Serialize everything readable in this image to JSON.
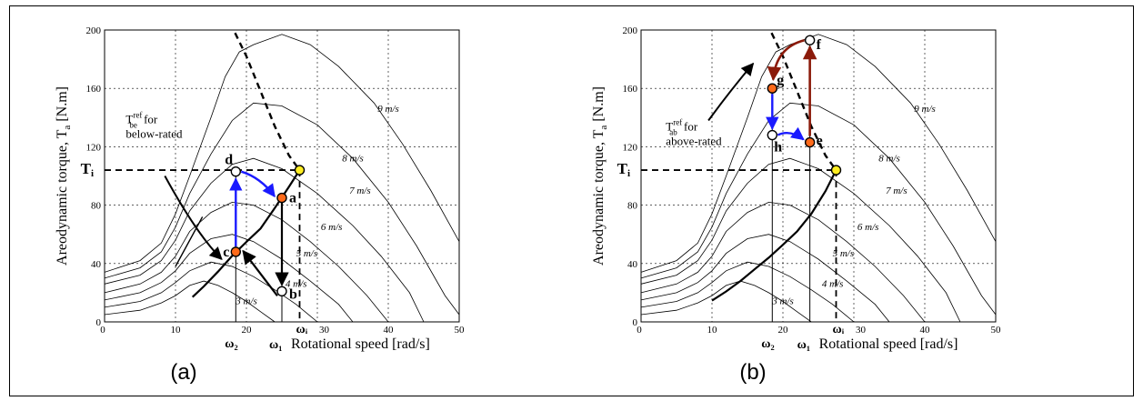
{
  "chart_data": [
    {
      "type": "line",
      "panel_label": "(a)",
      "xlabel": "Rotational speed [rad/s]",
      "ylabel": "Areodynamic torque, T",
      "ylabel_sub": "a",
      "ylabel_unit": "[N.m]",
      "xlim": [
        0,
        50
      ],
      "ylim": [
        0,
        200
      ],
      "xticks": [
        0,
        10,
        20,
        30,
        40,
        50
      ],
      "yticks": [
        0,
        40,
        80,
        120,
        160,
        200
      ],
      "grid": "dotted",
      "t_i_label": "T",
      "t_i_sub": "i",
      "omega_labels": [
        "ω₂",
        "ω₁",
        "ωᵢ"
      ],
      "omega_values": [
        18.5,
        25,
        27.5
      ],
      "T_i": 104,
      "ref_label": {
        "main": "T",
        "sup": "ref",
        "sub": "be",
        "rest": "for",
        "line2": "below-rated"
      },
      "wind_labels": [
        "3 m/s",
        "4 m/s",
        "5 m/s",
        "6 m/s",
        "7 m/s",
        "8 m/s",
        "9 m/s"
      ],
      "points": [
        {
          "name": "a",
          "x": 25,
          "y": 85,
          "color": "#ff6a1a"
        },
        {
          "name": "b",
          "x": 25,
          "y": 21,
          "color": "#ffffff"
        },
        {
          "name": "c",
          "x": 18.5,
          "y": 48,
          "color": "#ff6a1a"
        },
        {
          "name": "d",
          "x": 18.5,
          "y": 103,
          "color": "#ffffff"
        },
        {
          "name": "",
          "x": 27.5,
          "y": 104,
          "color": "#ffee22"
        }
      ]
    },
    {
      "type": "line",
      "panel_label": "(b)",
      "xlabel": "Rotational speed [rad/s]",
      "ylabel": "Areodynamic torque, T",
      "ylabel_sub": "a",
      "ylabel_unit": "[N.m]",
      "xlim": [
        0,
        50
      ],
      "ylim": [
        0,
        200
      ],
      "xticks": [
        0,
        10,
        20,
        30,
        40,
        50
      ],
      "yticks": [
        0,
        40,
        80,
        120,
        160,
        200
      ],
      "grid": "dotted",
      "t_i_label": "T",
      "t_i_sub": "i",
      "omega_labels": [
        "ω₂",
        "ω₁",
        "ωᵢ"
      ],
      "omega_values": [
        18.5,
        23.8,
        27.5
      ],
      "T_i": 104,
      "ref_label": {
        "main": "T",
        "sup": "ref",
        "sub": "ab",
        "rest": "for",
        "line2": "above-rated"
      },
      "wind_labels": [
        "3 m/s",
        "4 m/s",
        "5 m/s",
        "6 m/s",
        "7 m/s",
        "8 m/s",
        "9 m/s"
      ],
      "points": [
        {
          "name": "e",
          "x": 23.8,
          "y": 123,
          "color": "#ff6a1a"
        },
        {
          "name": "f",
          "x": 23.8,
          "y": 193,
          "color": "#ffffff"
        },
        {
          "name": "g",
          "x": 18.5,
          "y": 160,
          "color": "#ff6a1a"
        },
        {
          "name": "h",
          "x": 18.5,
          "y": 128,
          "color": "#ffffff"
        },
        {
          "name": "",
          "x": 27.5,
          "y": 104,
          "color": "#ffee22"
        }
      ]
    }
  ],
  "colors": {
    "blue_arrow": "#1a1aff",
    "red_arrow": "#8b1a0a",
    "point_orange": "#ff6a1a",
    "point_yellow": "#ffee22"
  }
}
